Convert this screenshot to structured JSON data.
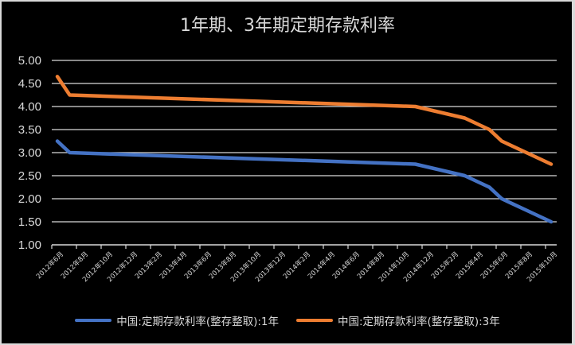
{
  "chart_data": {
    "type": "line",
    "title": "1年期、3年期定期存款利率",
    "xlabel": "",
    "ylabel": "",
    "ylim": [
      1.0,
      5.0
    ],
    "yticks": [
      "5.00",
      "4.50",
      "4.00",
      "3.50",
      "3.00",
      "2.50",
      "2.00",
      "1.50",
      "1.00"
    ],
    "grid": true,
    "legend_position": "bottom",
    "x_tick_labels": [
      "2012年6月",
      "2012年8月",
      "2012年10月",
      "2012年12月",
      "2013年2月",
      "2013年4月",
      "2013年6月",
      "2013年8月",
      "2013年10月",
      "2013年12月",
      "2014年2月",
      "2014年4月",
      "2014年6月",
      "2014年8月",
      "2014年10月",
      "2014年12月",
      "2015年2月",
      "2015年4月",
      "2015年6月",
      "2015年8月",
      "2015年10月"
    ],
    "x": [
      "2012-06",
      "2012-07",
      "2014-11",
      "2015-03",
      "2015-05",
      "2015-06",
      "2015-08",
      "2015-10"
    ],
    "x_month_index": [
      0,
      1,
      29,
      33,
      35,
      36,
      38,
      40
    ],
    "series": [
      {
        "name": "中国:定期存款利率(整存整取):1年",
        "color": "#4472C4",
        "values": [
          3.25,
          3.0,
          2.75,
          2.5,
          2.25,
          2.0,
          1.75,
          1.5
        ]
      },
      {
        "name": "中国:定期存款利率(整存整取):3年",
        "color": "#ED7D31",
        "values": [
          4.65,
          4.25,
          4.0,
          3.75,
          3.5,
          3.25,
          3.0,
          2.75
        ]
      }
    ]
  }
}
